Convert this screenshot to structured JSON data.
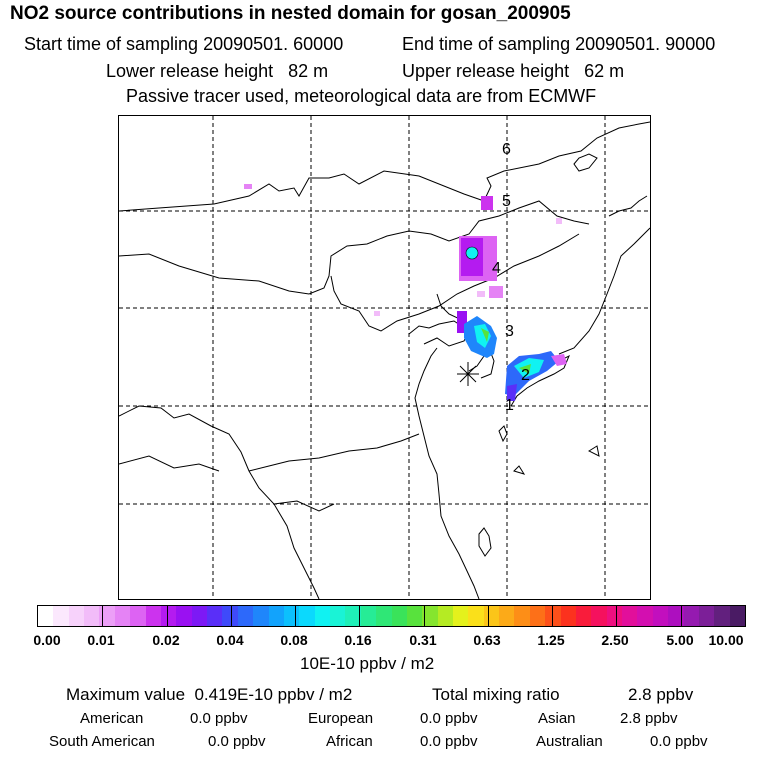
{
  "title": "NO2 source contributions in nested domain for gosan_200905",
  "start_time": "Start time of sampling 20090501. 60000",
  "end_time": "End time of sampling 20090501. 90000",
  "lower_release": "Lower release height   82 m",
  "upper_release": "Upper release height   62 m",
  "tracer_note": "Passive tracer used, meteorological data are from ECMWF",
  "map": {
    "track_labels": [
      "1",
      "2",
      "3",
      "4",
      "5",
      "6"
    ]
  },
  "colorbar": {
    "ticks": [
      "0.00",
      "0.01",
      "0.02",
      "0.04",
      "0.08",
      "0.16",
      "0.31",
      "0.63",
      "1.25",
      "2.50",
      "5.00",
      "10.00"
    ],
    "unit": "10E-10 ppbv / m2",
    "colors": [
      "#ffffff",
      "#fbe8fd",
      "#f7d2fb",
      "#f2bcf9",
      "#ec9ff7",
      "#e583f5",
      "#dd63f3",
      "#cc33ee",
      "#b41bf0",
      "#9a11f2",
      "#7d19f5",
      "#5a2ff8",
      "#3f4afa",
      "#2d69fa",
      "#1f86fb",
      "#12a3fc",
      "#0cc0fd",
      "#0bd9fd",
      "#10f2f2",
      "#1af3d6",
      "#1ff0b8",
      "#26ec96",
      "#2fe776",
      "#3ae35a",
      "#58e23d",
      "#85e52e",
      "#b5eb23",
      "#e4f11c",
      "#fae01a",
      "#fbc519",
      "#fcaa18",
      "#fd8e17",
      "#fd7018",
      "#fd501a",
      "#fc321e",
      "#f91c3b",
      "#f5115e",
      "#ee0f80",
      "#e20f9b",
      "#d30fb0",
      "#c20fbe",
      "#ad0fbf",
      "#951ab0",
      "#7c1f98",
      "#62207e",
      "#4a1b64"
    ]
  },
  "max_value_text": "Maximum value  0.419E-10 ppbv / m2",
  "total_mixing_label": "Total mixing ratio",
  "total_mixing_value": "2.8 ppbv",
  "regions": [
    {
      "name": "American",
      "value": "0.0 ppbv"
    },
    {
      "name": "European",
      "value": "0.0 ppbv"
    },
    {
      "name": "Asian",
      "value": "2.8 ppbv"
    },
    {
      "name": "South American",
      "value": "0.0 ppbv"
    },
    {
      "name": "African",
      "value": "0.0 ppbv"
    },
    {
      "name": "Australian",
      "value": "0.0 ppbv"
    }
  ]
}
